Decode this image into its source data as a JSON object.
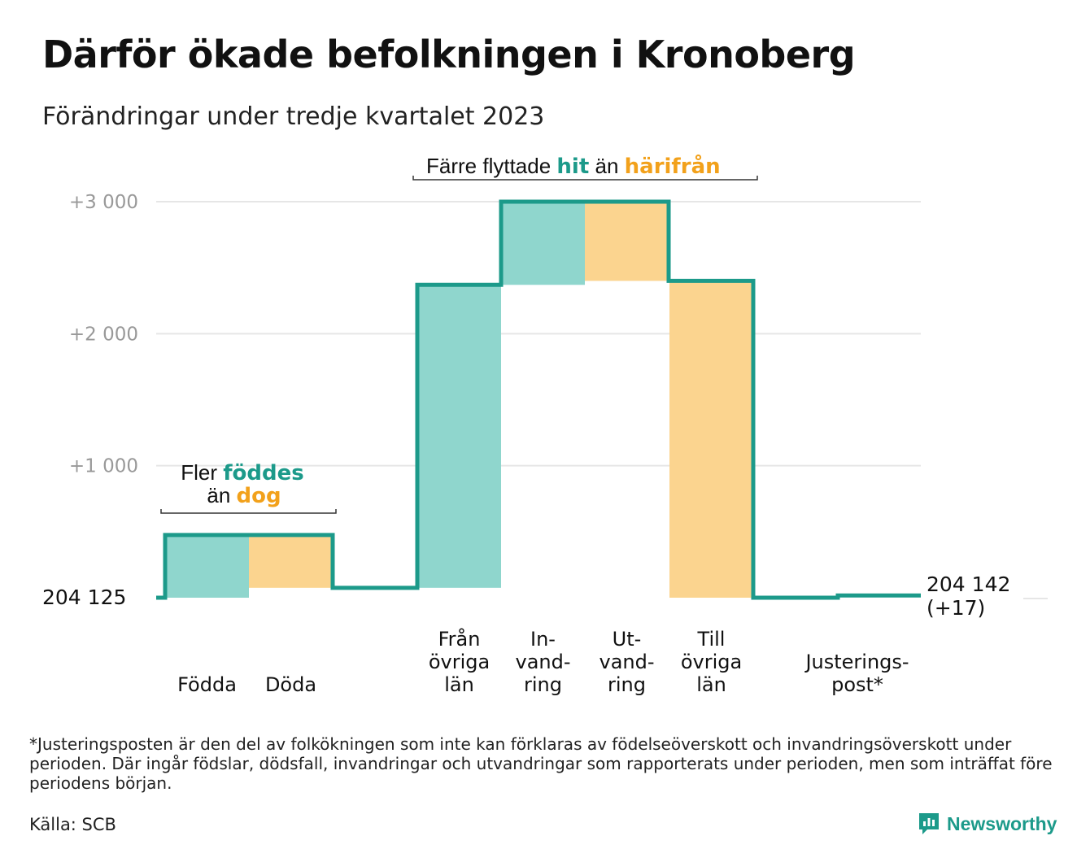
{
  "title": "Därför ökade befolkningen i Kronoberg",
  "subtitle": "Förändringar under tredje kvartalet 2023",
  "colors": {
    "inflow": "#8fd6cd",
    "outflow": "#fbd48f",
    "line": "#1c9a8a",
    "grid": "#e6e6e6",
    "highlight_green": "#1c9a8a",
    "highlight_orange": "#f2a11b"
  },
  "chart_data": {
    "type": "waterfall",
    "base_label": "204 125",
    "end_label": [
      "204 142",
      "(+17)"
    ],
    "y_ticks": [
      {
        "value": 1000,
        "label": "+1 000"
      },
      {
        "value": 2000,
        "label": "+2 000"
      },
      {
        "value": 3000,
        "label": "+3 000"
      }
    ],
    "ylim": [
      0,
      3000
    ],
    "steps": [
      {
        "category": [
          "Födda"
        ],
        "start": 0,
        "end": 475,
        "kind": "inflow"
      },
      {
        "category": [
          "Döda"
        ],
        "start": 475,
        "end": 75,
        "kind": "outflow"
      },
      {
        "category": [
          "Från",
          "övriga",
          "län"
        ],
        "start": 75,
        "end": 2370,
        "kind": "inflow"
      },
      {
        "category": [
          "In-",
          "vand-",
          "ring"
        ],
        "start": 2370,
        "end": 3000,
        "kind": "inflow"
      },
      {
        "category": [
          "Ut-",
          "vand-",
          "ring"
        ],
        "start": 3000,
        "end": 2400,
        "kind": "outflow"
      },
      {
        "category": [
          "Till",
          "övriga",
          "län"
        ],
        "start": 2400,
        "end": 0,
        "kind": "outflow"
      },
      {
        "category": [
          "Justerings-",
          "post*"
        ],
        "start": 0,
        "end": 17,
        "kind": "adjustment"
      }
    ],
    "annotations": [
      {
        "group": "births_deaths",
        "parts": [
          [
            "Fler ",
            "föddes"
          ],
          [
            "än ",
            "dog"
          ]
        ]
      },
      {
        "group": "migration",
        "parts": [
          [
            "Färre flyttade ",
            "hit"
          ],
          [
            " än ",
            "härifrån"
          ]
        ]
      }
    ]
  },
  "footnote": "*Justeringsposten är den del av folkökningen som inte kan förklaras av födelseöverskott och invandringsöverskott under perioden. Där ingår födslar, dödsfall, invandringar och utvandringar som rapporterats under perioden, men som inträffat före periodens början.",
  "source": "Källa: SCB",
  "brand": {
    "name": "Newsworthy",
    "icon": "newsworthy-logo-icon"
  }
}
